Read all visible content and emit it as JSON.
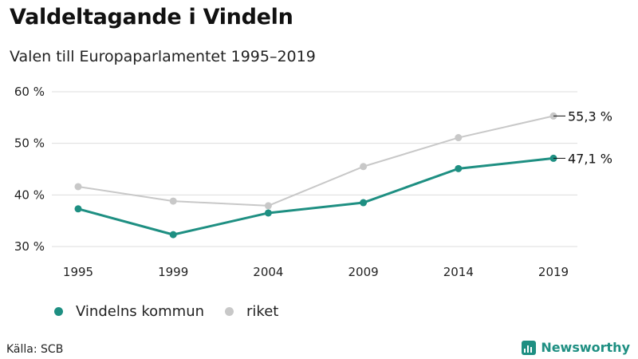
{
  "title": "Valdeltagande i Vindeln",
  "subtitle": "Valen till Europaparlamentet 1995–2019",
  "source": "Källa: SCB",
  "brand": "Newsworthy",
  "colors": {
    "vindeln": "#1e8f82",
    "riket": "#c8c8c8",
    "grid": "#dddddd",
    "brand": "#1e8f82"
  },
  "chart_data": {
    "type": "line",
    "title": "Valdeltagande i Vindeln",
    "subtitle": "Valen till Europaparlamentet 1995–2019",
    "xlabel": "",
    "ylabel": "",
    "categories": [
      "1995",
      "1999",
      "2004",
      "2009",
      "2014",
      "2019"
    ],
    "ylim": [
      30,
      60
    ],
    "yticks": [
      30,
      40,
      50,
      60
    ],
    "ytick_labels": [
      "30 %",
      "40 %",
      "50 %",
      "60 %"
    ],
    "grid": true,
    "legend_position": "bottom-left",
    "series": [
      {
        "name": "Vindelns kommun",
        "color": "#1e8f82",
        "values": [
          37.3,
          32.3,
          36.5,
          38.5,
          45.1,
          47.1
        ],
        "end_label": "47,1 %"
      },
      {
        "name": "riket",
        "color": "#c8c8c8",
        "values": [
          41.6,
          38.8,
          37.9,
          45.5,
          51.1,
          55.3
        ],
        "end_label": "55,3 %"
      }
    ]
  }
}
